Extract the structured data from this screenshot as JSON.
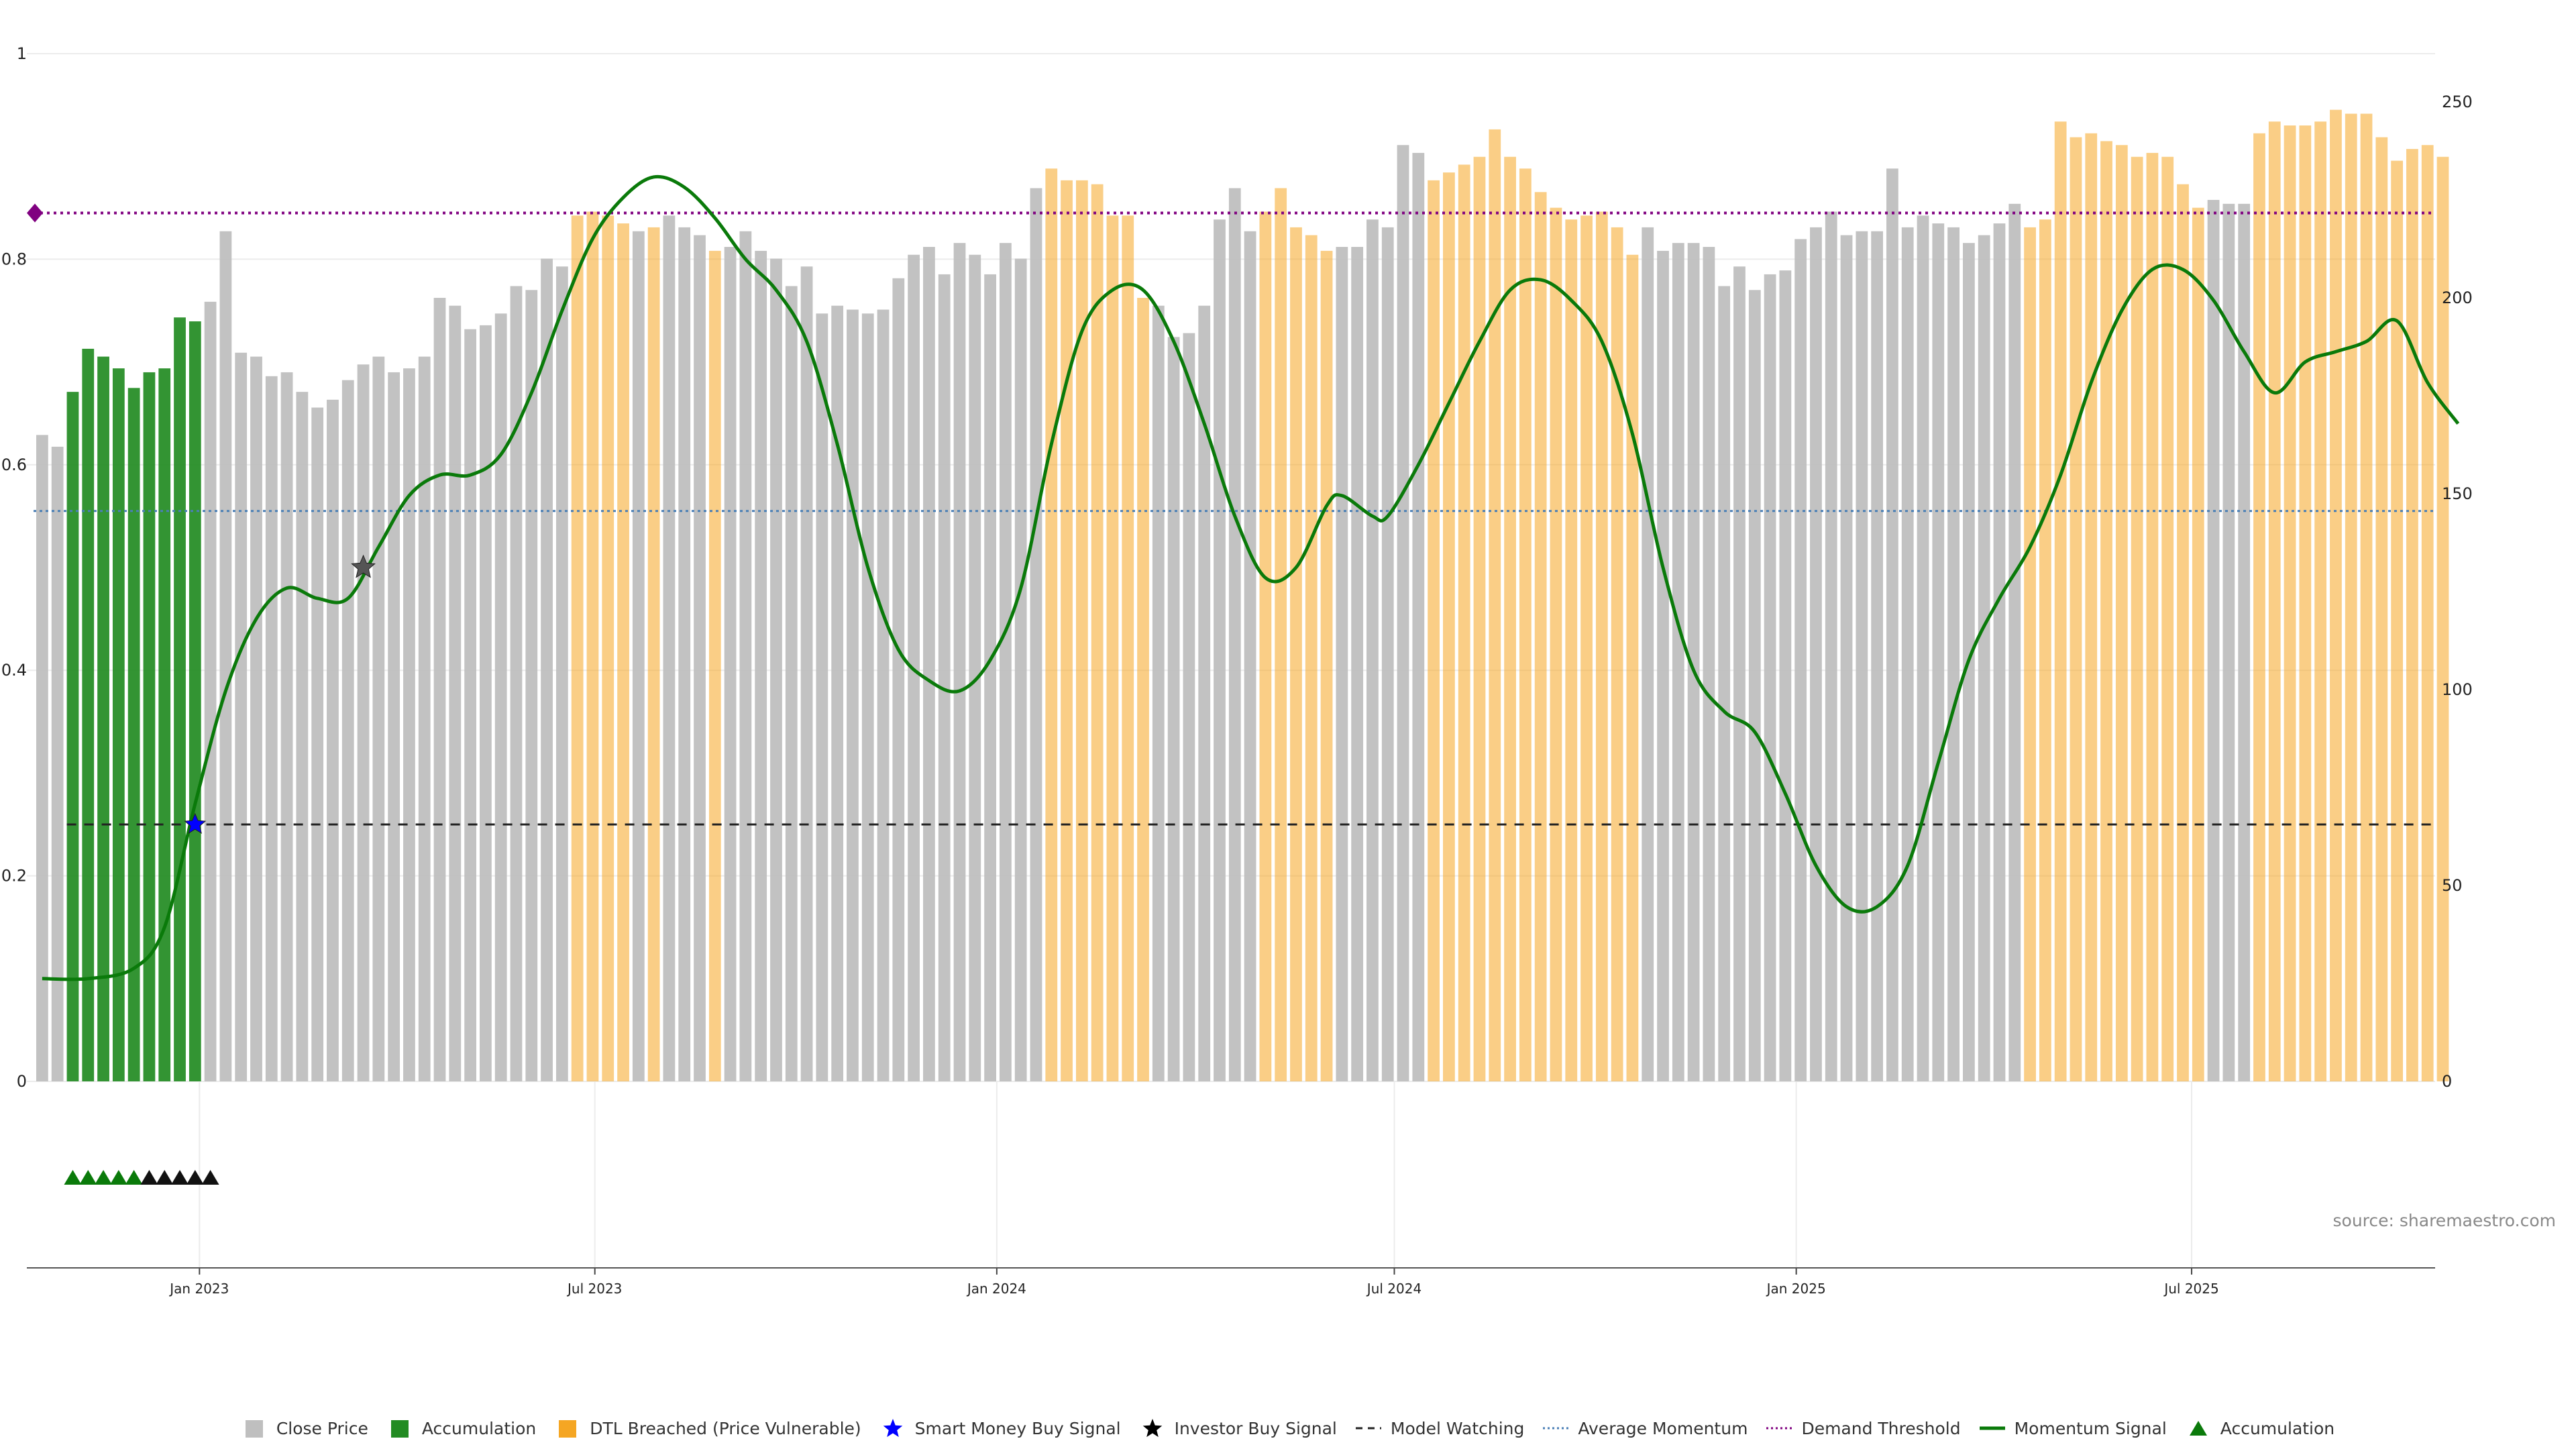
{
  "source_text": "source: sharemaestro.com",
  "legend": [
    {
      "label": "Close Price",
      "icon": "grey-square-icon",
      "color": "#bfbfbf"
    },
    {
      "label": "Accumulation",
      "icon": "green-square-icon",
      "color": "#228b22"
    },
    {
      "label": "DTL Breached (Price Vulnerable)",
      "icon": "orange-square-icon",
      "color": "#f5a623"
    },
    {
      "label": "Smart Money Buy Signal",
      "icon": "blue-star-icon",
      "color": "#0000ff"
    },
    {
      "label": "Investor Buy Signal",
      "icon": "black-star-icon",
      "color": "#000000"
    },
    {
      "label": "Model Watching",
      "icon": "dashed-line-icon",
      "color": "#222222"
    },
    {
      "label": "Average Momentum",
      "icon": "dotted-blue-line-icon",
      "color": "#4a7fb5"
    },
    {
      "label": "Demand Threshold",
      "icon": "dotted-purple-line-icon",
      "color": "#800080"
    },
    {
      "label": "Momentum Signal",
      "icon": "green-line-icon",
      "color": "#0a7a0a"
    },
    {
      "label": "Accumulation",
      "icon": "green-triangle-icon",
      "color": "#0a7a0a"
    }
  ],
  "chart_data": {
    "type": "bar",
    "title": "",
    "xlabel": "",
    "ylabel": "",
    "left_axis": {
      "ticks": [
        "0",
        "0.2",
        "0.4",
        "0.6",
        "0.8",
        "1"
      ],
      "range": [
        0,
        1
      ]
    },
    "right_axis": {
      "ticks": [
        "0",
        "50",
        "100",
        "150",
        "200",
        "250"
      ],
      "range": [
        0,
        262
      ]
    },
    "date_ticks": [
      "Jan 2023",
      "Jul 2023",
      "Jan 2024",
      "Jul 2024",
      "Jan 2025",
      "Jul 2025"
    ],
    "bar_count": 158,
    "start_date": "2022-10-21",
    "period_days": 7,
    "series": [
      {
        "name": "Close Price",
        "colors": {
          "neutral": "#bfbfbf",
          "accumulation": "#228b22",
          "dtl_breached": "#f5a623"
        },
        "values": [
          165,
          162,
          176,
          187,
          185,
          182,
          177,
          181,
          182,
          195,
          194,
          199,
          217,
          186,
          185,
          180,
          181,
          176,
          172,
          174,
          179,
          183,
          185,
          181,
          182,
          185,
          200,
          198,
          192,
          193,
          196,
          203,
          202,
          210,
          208,
          221,
          222,
          221,
          219,
          217,
          218,
          221,
          218,
          216,
          212,
          213,
          217,
          212,
          210,
          203,
          208,
          196,
          198,
          197,
          196,
          197,
          205,
          211,
          213,
          206,
          214,
          211,
          206,
          214,
          210,
          228,
          233,
          230,
          230,
          229,
          221,
          221,
          200,
          198,
          190,
          191,
          198,
          220,
          228,
          217,
          222,
          228,
          218,
          216,
          212,
          213,
          213,
          220,
          218,
          239,
          237,
          230,
          232,
          234,
          236,
          243,
          236,
          233,
          227,
          223,
          220,
          221,
          222,
          218,
          211,
          218,
          212,
          214,
          214,
          213,
          203,
          208,
          202,
          206,
          207,
          215,
          218,
          222,
          216,
          217,
          217,
          233,
          218,
          221,
          219,
          218,
          214,
          216,
          219,
          224,
          218,
          220,
          245,
          241,
          242,
          240,
          239,
          236,
          237,
          236,
          229,
          223,
          225,
          224,
          224,
          242,
          245,
          244,
          244,
          245,
          248,
          247,
          247,
          241,
          235,
          238,
          239,
          236
        ],
        "categories_code": "NNAAAAAAAAANNNNNNNNNNNNNNNNNNNNNNNNDDDDNDNNNDNNNNNNNNNNNNNNNNNNNNNDDDDDDDNNNNNNNDDDDDNNNNNNDDDDDDDDDDDDDDNNNNNNNNNNNNNNNNNNNNNNNNNDDDDDDDDDDDDNNNDDDDDDDDDDDDDDDDDDDDDDDDD"
      },
      {
        "name": "Momentum Signal",
        "points": [
          [
            0,
            0.1
          ],
          [
            3,
            0.1
          ],
          [
            6,
            0.11
          ],
          [
            8,
            0.15
          ],
          [
            10,
            0.27
          ],
          [
            12,
            0.38
          ],
          [
            14,
            0.45
          ],
          [
            16,
            0.48
          ],
          [
            18,
            0.47
          ],
          [
            20,
            0.47
          ],
          [
            22,
            0.52
          ],
          [
            24,
            0.57
          ],
          [
            26,
            0.59
          ],
          [
            28,
            0.59
          ],
          [
            30,
            0.61
          ],
          [
            32,
            0.67
          ],
          [
            34,
            0.75
          ],
          [
            36,
            0.82
          ],
          [
            38,
            0.86
          ],
          [
            40,
            0.88
          ],
          [
            42,
            0.87
          ],
          [
            44,
            0.84
          ],
          [
            46,
            0.8
          ],
          [
            48,
            0.77
          ],
          [
            50,
            0.72
          ],
          [
            52,
            0.62
          ],
          [
            54,
            0.5
          ],
          [
            56,
            0.42
          ],
          [
            58,
            0.39
          ],
          [
            60,
            0.38
          ],
          [
            62,
            0.41
          ],
          [
            64,
            0.48
          ],
          [
            66,
            0.62
          ],
          [
            68,
            0.73
          ],
          [
            70,
            0.77
          ],
          [
            72,
            0.77
          ],
          [
            74,
            0.72
          ],
          [
            76,
            0.64
          ],
          [
            78,
            0.55
          ],
          [
            80,
            0.49
          ],
          [
            82,
            0.5
          ],
          [
            84,
            0.56
          ],
          [
            85,
            0.57
          ],
          [
            87,
            0.55
          ],
          [
            88,
            0.55
          ],
          [
            90,
            0.6
          ],
          [
            92,
            0.66
          ],
          [
            94,
            0.72
          ],
          [
            96,
            0.77
          ],
          [
            98,
            0.78
          ],
          [
            100,
            0.76
          ],
          [
            102,
            0.72
          ],
          [
            104,
            0.63
          ],
          [
            106,
            0.5
          ],
          [
            108,
            0.4
          ],
          [
            110,
            0.36
          ],
          [
            112,
            0.34
          ],
          [
            114,
            0.28
          ],
          [
            116,
            0.21
          ],
          [
            118,
            0.17
          ],
          [
            120,
            0.17
          ],
          [
            122,
            0.21
          ],
          [
            124,
            0.31
          ],
          [
            126,
            0.41
          ],
          [
            128,
            0.47
          ],
          [
            130,
            0.52
          ],
          [
            132,
            0.59
          ],
          [
            134,
            0.68
          ],
          [
            136,
            0.75
          ],
          [
            138,
            0.79
          ],
          [
            140,
            0.79
          ],
          [
            142,
            0.76
          ],
          [
            144,
            0.71
          ],
          [
            146,
            0.67
          ],
          [
            148,
            0.7
          ],
          [
            150,
            0.71
          ],
          [
            152,
            0.72
          ],
          [
            154,
            0.74
          ],
          [
            156,
            0.68
          ],
          [
            158,
            0.64
          ]
        ]
      },
      {
        "name": "Model Watching",
        "value": 0.25
      },
      {
        "name": "Average Momentum",
        "value": 0.555
      },
      {
        "name": "Demand Threshold",
        "value": 0.845
      }
    ],
    "markers": {
      "smart_money_buy": [
        {
          "bar": 10,
          "value": 0.25
        }
      ],
      "investor_buy": [
        {
          "bar": 21,
          "value": 0.5
        }
      ],
      "accumulation_triangles": {
        "green": [
          2,
          3,
          4,
          5,
          6
        ],
        "black": [
          7,
          8,
          9,
          10,
          11
        ]
      },
      "demand_threshold_diamond": {
        "bar": 0,
        "value": 0.845
      }
    },
    "grid": true,
    "legend_position": "bottom"
  }
}
